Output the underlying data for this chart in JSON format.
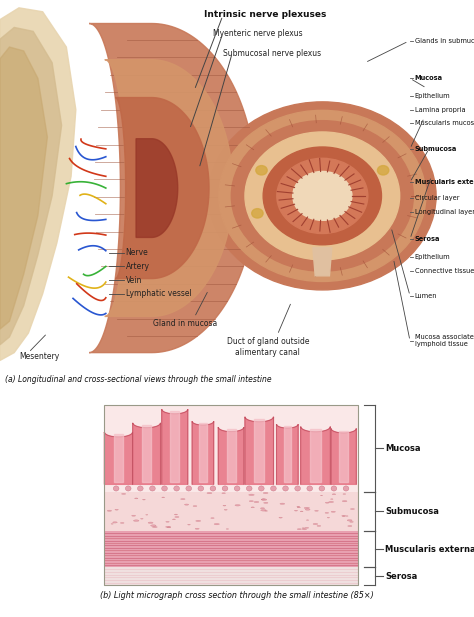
{
  "bg_color": "#ffffff",
  "top_bg": "#f8f4ee",
  "bottom_bg": "#faf5e8",
  "caption_top": "(a) Longitudinal and cross-sectional views through the small intestine",
  "caption_bottom": "(b) Light micrograph cross section through the small intestine (85×)",
  "right_labels_top": [
    [
      "Glands in submucosa",
      false,
      0.895
    ],
    [
      "Mucosa",
      true,
      0.8
    ],
    [
      "Epithelium",
      false,
      0.755
    ],
    [
      "Lamina propria",
      false,
      0.72
    ],
    [
      "Muscularis mucosae",
      false,
      0.685
    ],
    [
      "Submucosa",
      true,
      0.62
    ],
    [
      "Muscularis externa",
      true,
      0.535
    ],
    [
      "Circular layer",
      false,
      0.495
    ],
    [
      "Longitudinal layer",
      false,
      0.46
    ],
    [
      "Serosa",
      true,
      0.39
    ],
    [
      "Epithelium",
      false,
      0.345
    ],
    [
      "Connective tissue",
      false,
      0.308
    ],
    [
      "Lumen",
      false,
      0.245
    ],
    [
      "Mucosa associated\nlymphoid tissue",
      false,
      0.13
    ]
  ],
  "right_labels_bottom": [
    [
      "Mucosa",
      true,
      0.82
    ],
    [
      "Submucosa",
      true,
      0.59
    ],
    [
      "Muscularis externa",
      true,
      0.37
    ],
    [
      "Serosa",
      true,
      0.185
    ]
  ]
}
